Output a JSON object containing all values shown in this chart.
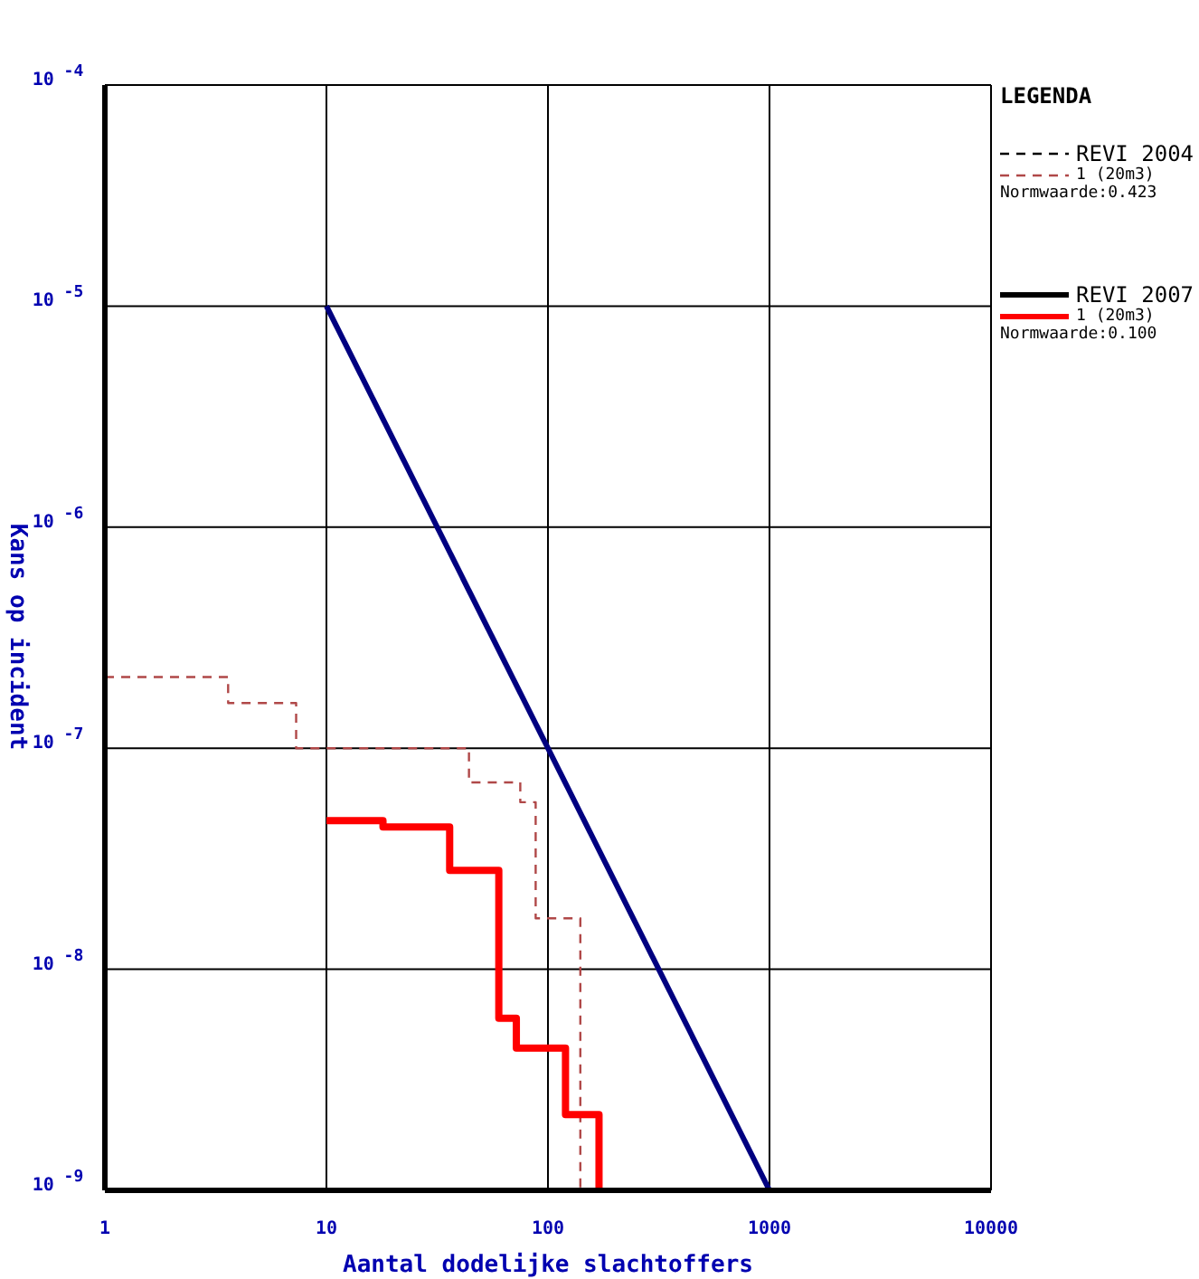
{
  "chart_data": {
    "type": "line",
    "xlabel": "Aantal dodelijke slachtoffers",
    "ylabel": "Kans op incident",
    "legend_title": "LEGENDA",
    "log": "xy",
    "grid": true,
    "legend": "right",
    "marker": "none",
    "xlim": [
      1,
      10000
    ],
    "xticks": [
      1,
      10,
      100,
      1000,
      10000
    ],
    "ylim": [
      1e-09,
      0.0001
    ],
    "yticks": [
      {
        "value": 1e-09,
        "label": "10$^{-9}$"
      },
      {
        "value": 1e-08,
        "label": "10$^{-8}$"
      },
      {
        "value": 1e-07,
        "label": "10$^{-7}$"
      },
      {
        "value": 1e-06,
        "label": "10$^{-6}$"
      },
      {
        "value": 1e-05,
        "label": "10$^{-5}$"
      },
      {
        "value": 0.0001,
        "label": "10$^{-4}$"
      }
    ],
    "annotations": [
      "REVI 2004",
      "Normwaarde:0.423",
      "REVI 2007",
      "Normwaarde:0.100"
    ],
    "series": [
      {
        "color": "#000080",
        "x": [
          10,
          1000
        ],
        "values": [
          1e-05,
          1e-09
        ]
      },
      {
        "type": "step",
        "name": "1 (20m3)",
        "color": "#b04848",
        "line_style": "dashed",
        "x": [
          1,
          3.6,
          7.3,
          44,
          75,
          88,
          140
        ],
        "values": [
          2.1e-07,
          1.6e-07,
          1e-07,
          7e-08,
          5.7e-08,
          1.7e-08,
          1e-09
        ]
      },
      {
        "type": "step",
        "name": "1 (20m3)",
        "color": "#ff0000",
        "line_style": "solid",
        "x": [
          10,
          18,
          36,
          60,
          72,
          120,
          170
        ],
        "values": [
          4.7e-08,
          4.4e-08,
          2.8e-08,
          6e-09,
          4.4e-09,
          2.2e-09,
          1e-09
        ]
      }
    ]
  }
}
